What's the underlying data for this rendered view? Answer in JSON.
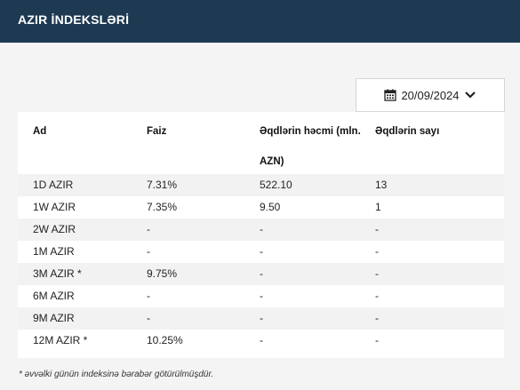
{
  "header": {
    "title": "AZIR İNDEKSLƏRİ"
  },
  "date_picker": {
    "value": "20/09/2024",
    "icon": "calendar-icon",
    "chevron": "chevron-down-icon"
  },
  "table": {
    "columns": [
      "Ad",
      "Faiz",
      "Əqdlərin həcmi (mln. AZN)",
      "Əqdlərin sayı"
    ],
    "column_lines": {
      "volume_line1": "Əqdlərin həcmi (mln.",
      "volume_line2": "AZN)"
    },
    "rows": [
      {
        "ad": "1D AZIR",
        "faiz": "7.31%",
        "hecm": "522.10",
        "say": "13"
      },
      {
        "ad": "1W AZIR",
        "faiz": "7.35%",
        "hecm": "9.50",
        "say": "1"
      },
      {
        "ad": "2W AZIR",
        "faiz": "-",
        "hecm": "-",
        "say": "-"
      },
      {
        "ad": "1M AZIR",
        "faiz": "-",
        "hecm": "-",
        "say": "-"
      },
      {
        "ad": "3M AZIR *",
        "faiz": "9.75%",
        "hecm": "-",
        "say": "-"
      },
      {
        "ad": "6M AZIR",
        "faiz": "-",
        "hecm": "-",
        "say": "-"
      },
      {
        "ad": "9M AZIR",
        "faiz": "-",
        "hecm": "-",
        "say": "-"
      },
      {
        "ad": "12M AZIR *",
        "faiz": "10.25%",
        "hecm": "-",
        "say": "-"
      }
    ]
  },
  "footnote": "* əvvəlki günün indeksinə bərabər götürülmüşdür.",
  "colors": {
    "header_bg": "#1e3a52",
    "row_shade": "#f2f2f2"
  }
}
